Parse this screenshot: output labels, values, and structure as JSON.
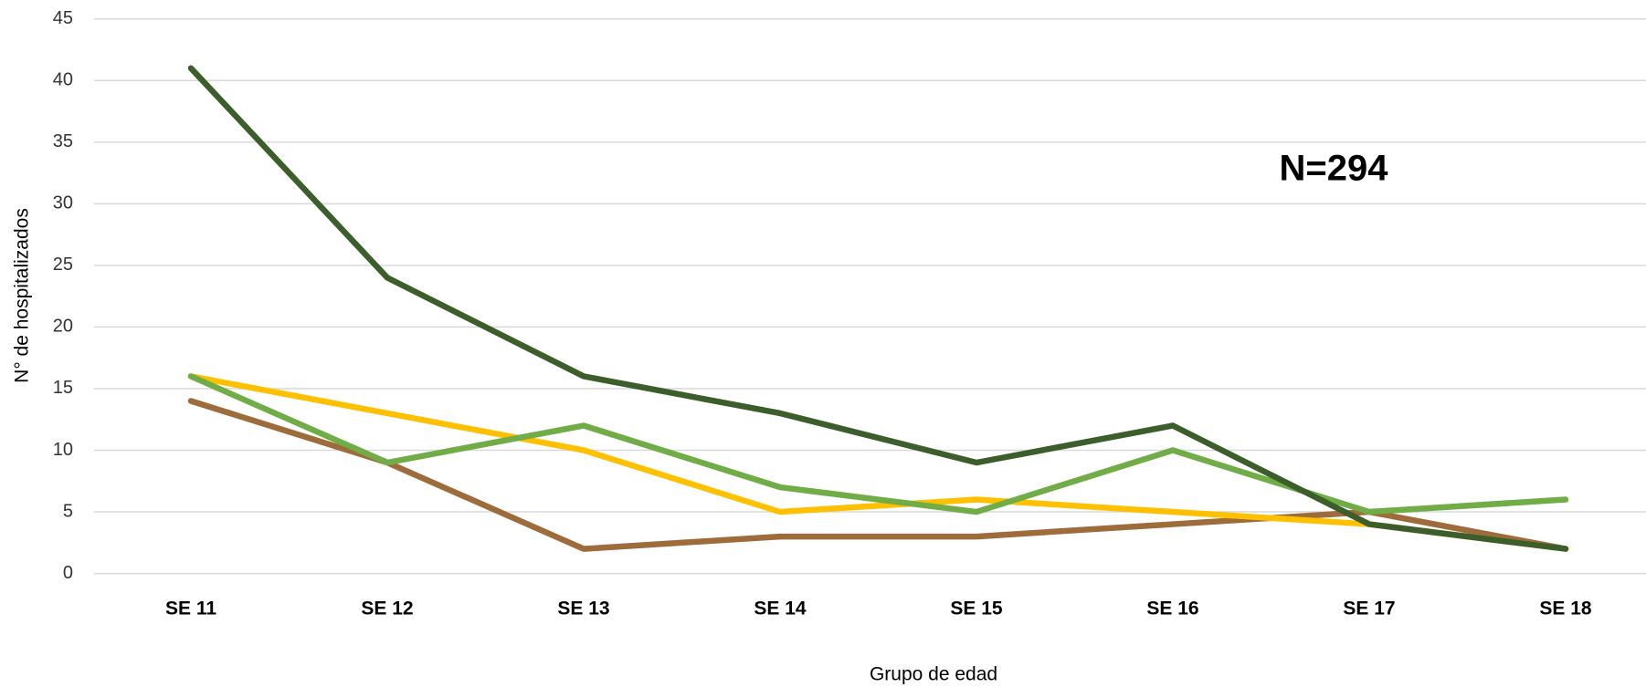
{
  "chart_data": {
    "type": "line",
    "annotation": "N=294",
    "x_label": "Grupo de edad",
    "y_label": "N° de hospitalizados",
    "categories": [
      "SE 11",
      "SE 12",
      "SE 13",
      "SE 14",
      "SE 15",
      "SE 16",
      "SE 17",
      "SE 18"
    ],
    "series": [
      {
        "color": "#9e6b3a",
        "values": [
          14,
          9,
          2,
          3,
          3,
          4,
          5,
          2
        ]
      },
      {
        "color": "#ffc000",
        "values": [
          16,
          13,
          10,
          5,
          6,
          5,
          4,
          2
        ]
      },
      {
        "color": "#70ad47",
        "values": [
          16,
          9,
          12,
          7,
          5,
          10,
          5,
          6
        ]
      },
      {
        "color": "#3b5e2b",
        "values": [
          41,
          24,
          16,
          13,
          9,
          12,
          4,
          2
        ]
      }
    ],
    "ylim": [
      0,
      45
    ],
    "yticks": [
      0,
      5,
      10,
      15,
      20,
      25,
      30,
      35,
      40,
      45
    ],
    "grid": true
  }
}
